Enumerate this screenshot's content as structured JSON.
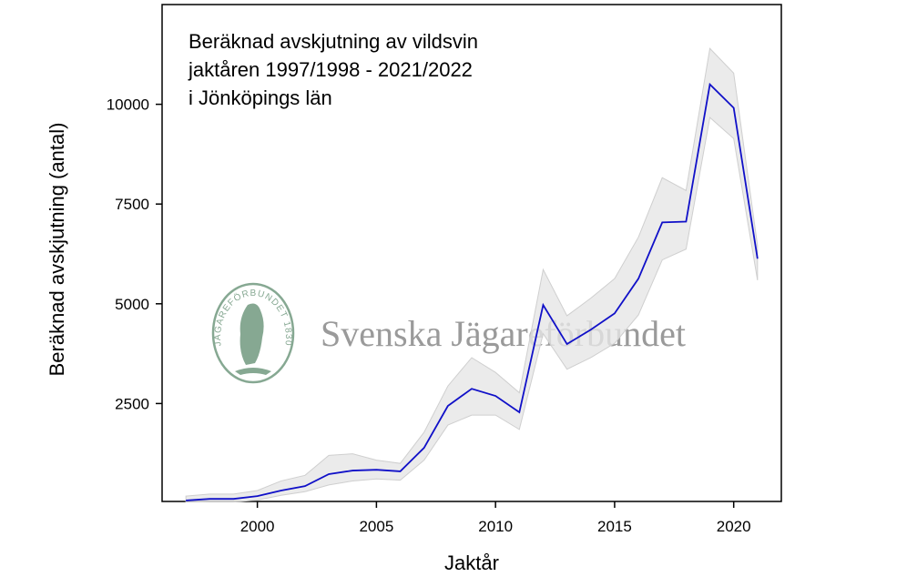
{
  "chart_data": {
    "type": "line",
    "title_lines": [
      "Beräknad avskjutning av vildsvin",
      "jaktåren 1997/1998 - 2021/2022",
      "i Jönköpings län"
    ],
    "xlabel": "Jaktår",
    "ylabel": "Beräknad avskjutning (antal)",
    "watermark": "Svenska Jägareförbundet",
    "logo_text": "JÄGAREFÖRBUNDET 1830",
    "x": [
      1997,
      1998,
      1999,
      2000,
      2001,
      2002,
      2003,
      2004,
      2005,
      2006,
      2007,
      2008,
      2009,
      2010,
      2011,
      2012,
      2013,
      2014,
      2015,
      2016,
      2017,
      2018,
      2019,
      2020,
      2021
    ],
    "series": [
      {
        "color": "#1010c8",
        "values": [
          70,
          110,
          110,
          180,
          320,
          430,
          730,
          820,
          840,
          800,
          1390,
          2440,
          2870,
          2690,
          2280,
          4970,
          3990,
          4350,
          4760,
          5630,
          7040,
          7060,
          10500,
          9910,
          6130
        ]
      }
    ],
    "band": {
      "color": "#e6e6e6",
      "lower": [
        40,
        30,
        30,
        80,
        200,
        290,
        460,
        560,
        610,
        580,
        1080,
        1960,
        2210,
        2210,
        1850,
        4250,
        3360,
        3650,
        4010,
        4720,
        6100,
        6370,
        9670,
        9140,
        5590
      ],
      "upper": [
        180,
        230,
        230,
        320,
        560,
        700,
        1200,
        1240,
        1080,
        1000,
        1780,
        2940,
        3650,
        3280,
        2770,
        5860,
        4700,
        5140,
        5630,
        6670,
        8160,
        7840,
        11400,
        10780,
        6460
      ]
    },
    "xlim": [
      1996,
      2022
    ],
    "xticks": [
      2000,
      2005,
      2010,
      2015,
      2020
    ],
    "ylim": [
      0,
      12500
    ],
    "yticks": [
      2500,
      5000,
      7500,
      10000
    ]
  }
}
